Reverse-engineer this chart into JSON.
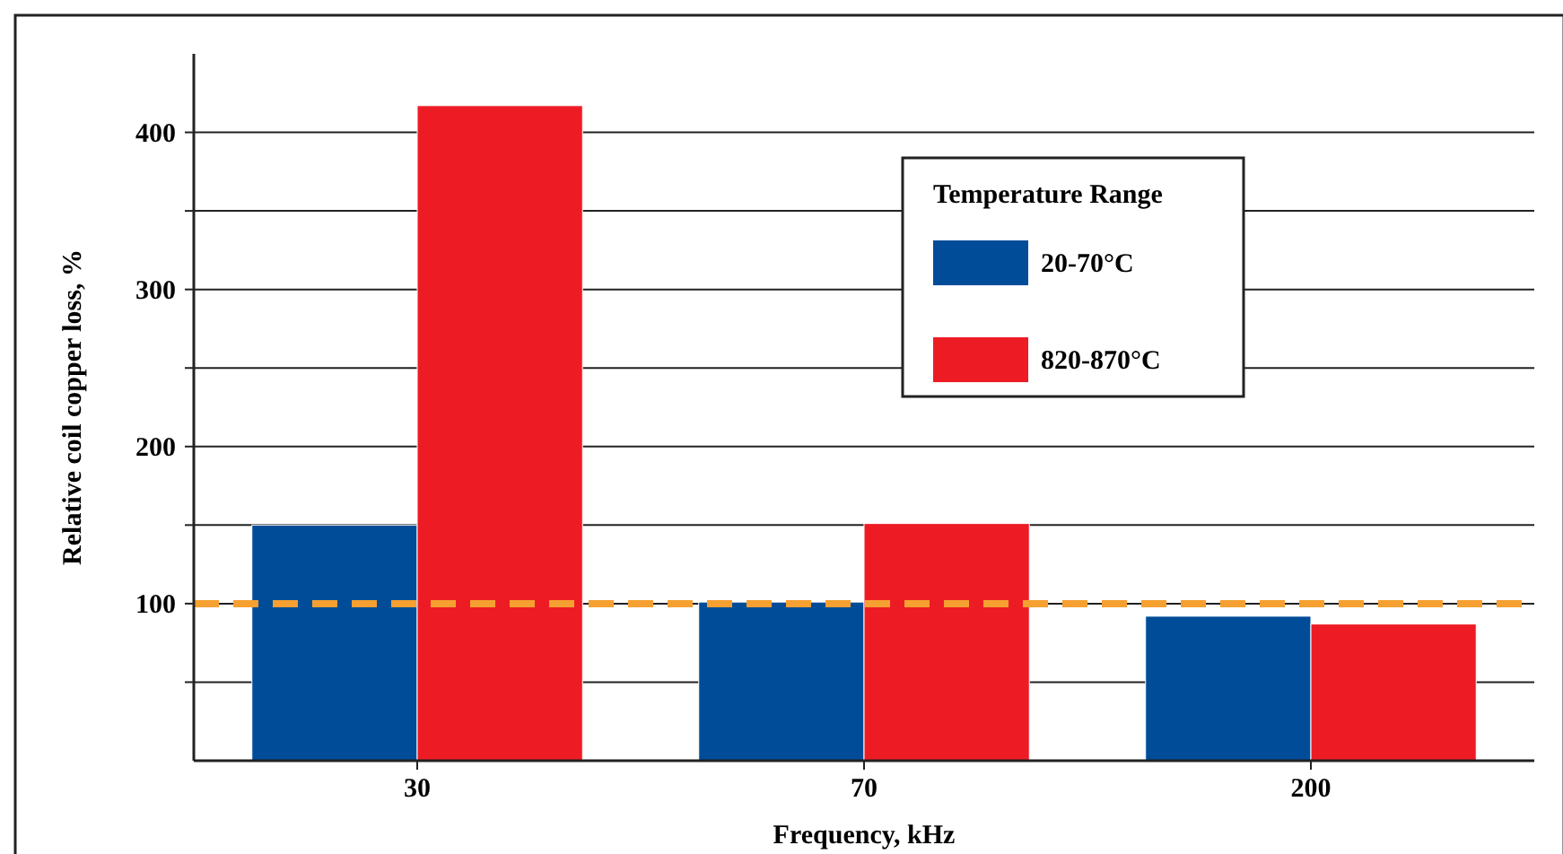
{
  "chart_data": {
    "type": "bar",
    "xlabel": "Frequency, kHz",
    "ylabel": "Relative coil copper loss, %",
    "legend_title": "Temperature Range",
    "categories": [
      "30",
      "70",
      "200"
    ],
    "series": [
      {
        "name": "20-70°C",
        "color": "#004c99",
        "values": [
          150,
          101,
          92
        ]
      },
      {
        "name": "820-870°C",
        "color": "#ed1c24",
        "values": [
          417,
          151,
          87
        ]
      }
    ],
    "ylim": [
      0,
      450
    ],
    "yticks": [
      {
        "value": 50,
        "label": null
      },
      100,
      {
        "value": 150,
        "label": null
      },
      200,
      {
        "value": 250,
        "label": null
      },
      300,
      {
        "value": 350,
        "label": null
      },
      400
    ],
    "grid": "y",
    "legend": "top right",
    "ref_lines": [
      {
        "axis": "y",
        "value": 100,
        "color": "#f5a030",
        "line_style": "dashed"
      }
    ]
  }
}
